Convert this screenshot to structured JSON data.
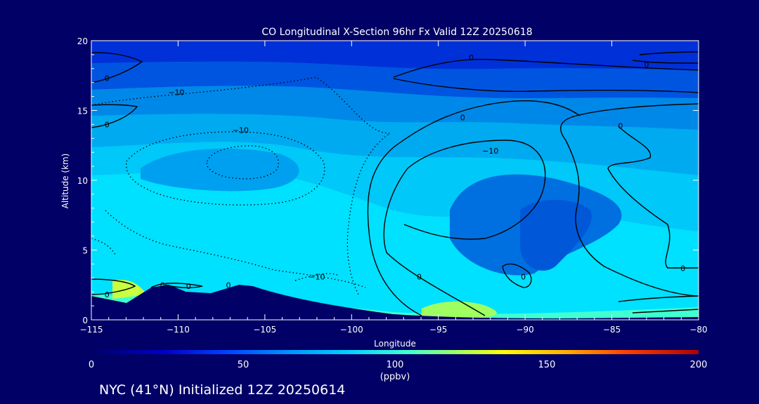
{
  "chart_data": {
    "type": "heatmap",
    "title": "CO Longitudinal X-Section 96hr  Fx Valid 12Z 20250618",
    "xlabel": "Longitude",
    "ylabel": "Altitude (km)",
    "xlim": [
      -115,
      -80
    ],
    "ylim": [
      0,
      20
    ],
    "x_ticks": [
      -115,
      -110,
      -105,
      -100,
      -95,
      -90,
      -85,
      -80
    ],
    "x_tick_labels": [
      "−115",
      "−110",
      "−105",
      "−100",
      "−95",
      "−90",
      "−85",
      "−80"
    ],
    "y_ticks": [
      0,
      5,
      10,
      15,
      20
    ],
    "y_tick_labels": [
      "0",
      "5",
      "10",
      "15",
      "20"
    ],
    "colorbar": {
      "min": 0,
      "max": 200,
      "ticks": [
        0,
        50,
        100,
        150,
        200
      ],
      "tick_labels": [
        "0",
        "50",
        "100",
        "150",
        "200"
      ],
      "units": "(ppbv)"
    },
    "contour_labels": [
      {
        "text": "0",
        "x": -114.1,
        "y": 17.3
      },
      {
        "text": "−10",
        "x": -110.1,
        "y": 16.3
      },
      {
        "text": "0",
        "x": -114.1,
        "y": 14.0
      },
      {
        "text": "−10",
        "x": -106.4,
        "y": 13.6
      },
      {
        "text": "0",
        "x": -93.1,
        "y": 18.8
      },
      {
        "text": "0",
        "x": -83.0,
        "y": 18.3
      },
      {
        "text": "0",
        "x": -93.6,
        "y": 14.5
      },
      {
        "text": "−10",
        "x": -92.0,
        "y": 12.1
      },
      {
        "text": "0",
        "x": -84.5,
        "y": 13.9
      },
      {
        "text": "−10",
        "x": -102.0,
        "y": 3.1
      },
      {
        "text": "0",
        "x": -96.1,
        "y": 3.1
      },
      {
        "text": "0",
        "x": -90.1,
        "y": 3.1
      },
      {
        "text": "0",
        "x": -80.9,
        "y": 3.7
      },
      {
        "text": "0",
        "x": -114.1,
        "y": 1.8
      },
      {
        "text": "0",
        "x": -110.9,
        "y": 2.5
      },
      {
        "text": "0",
        "x": -109.4,
        "y": 2.4
      },
      {
        "text": "0",
        "x": -107.1,
        "y": 2.5
      }
    ]
  },
  "footer": {
    "caption": "NYC (41°N) Initialized 12Z 20250614"
  }
}
